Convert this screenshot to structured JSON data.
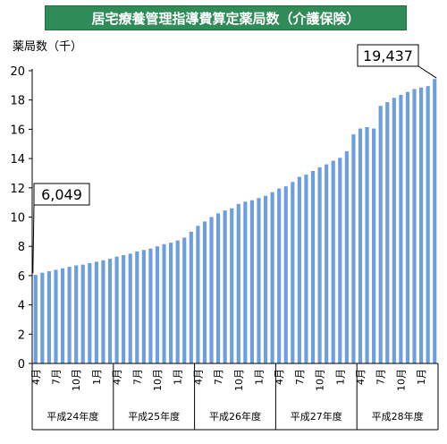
{
  "chart_data": {
    "type": "bar",
    "title": "居宅療養管理指導費算定薬局数（介護保険）",
    "ylabel": "薬局数（千）",
    "ylim": [
      0,
      20
    ],
    "yticks": [
      0,
      2,
      4,
      6,
      8,
      10,
      12,
      14,
      16,
      18,
      20
    ],
    "grid": false,
    "bar_color": "#6d9fe0",
    "categories": [
      "H24-4",
      "H24-5",
      "H24-6",
      "H24-7",
      "H24-8",
      "H24-9",
      "H24-10",
      "H24-11",
      "H24-12",
      "H24-1",
      "H24-2",
      "H24-3",
      "H25-4",
      "H25-5",
      "H25-6",
      "H25-7",
      "H25-8",
      "H25-9",
      "H25-10",
      "H25-11",
      "H25-12",
      "H25-1",
      "H25-2",
      "H25-3",
      "H26-4",
      "H26-5",
      "H26-6",
      "H26-7",
      "H26-8",
      "H26-9",
      "H26-10",
      "H26-11",
      "H26-12",
      "H26-1",
      "H26-2",
      "H26-3",
      "H27-4",
      "H27-5",
      "H27-6",
      "H27-7",
      "H27-8",
      "H27-9",
      "H27-10",
      "H27-11",
      "H27-12",
      "H27-1",
      "H27-2",
      "H27-3",
      "H28-4",
      "H28-5",
      "H28-6",
      "H28-7",
      "H28-8",
      "H28-9",
      "H28-10",
      "H28-11",
      "H28-12",
      "H28-1",
      "H28-2",
      "H28-3"
    ],
    "values": [
      6.049,
      6.2,
      6.3,
      6.4,
      6.5,
      6.6,
      6.7,
      6.75,
      6.85,
      6.95,
      7.05,
      7.15,
      7.3,
      7.4,
      7.5,
      7.65,
      7.75,
      7.85,
      8.0,
      8.15,
      8.25,
      8.4,
      8.6,
      9.0,
      9.4,
      9.7,
      10.0,
      10.25,
      10.45,
      10.6,
      10.9,
      11.05,
      11.15,
      11.3,
      11.45,
      11.7,
      11.95,
      12.1,
      12.4,
      12.75,
      12.9,
      13.15,
      13.4,
      13.6,
      13.85,
      14.05,
      14.5,
      15.65,
      16.05,
      16.15,
      16.05,
      17.6,
      17.85,
      18.15,
      18.35,
      18.55,
      18.75,
      18.85,
      18.95,
      19.437
    ],
    "month_labels": [
      {
        "index": 0,
        "label": "4月"
      },
      {
        "index": 3,
        "label": "7月"
      },
      {
        "index": 6,
        "label": "10月"
      },
      {
        "index": 9,
        "label": "1月"
      },
      {
        "index": 12,
        "label": "4月"
      },
      {
        "index": 15,
        "label": "7月"
      },
      {
        "index": 18,
        "label": "10月"
      },
      {
        "index": 21,
        "label": "1月"
      },
      {
        "index": 24,
        "label": "4月"
      },
      {
        "index": 27,
        "label": "7月"
      },
      {
        "index": 30,
        "label": "10月"
      },
      {
        "index": 33,
        "label": "1月"
      },
      {
        "index": 36,
        "label": "4月"
      },
      {
        "index": 39,
        "label": "7月"
      },
      {
        "index": 42,
        "label": "10月"
      },
      {
        "index": 45,
        "label": "1月"
      },
      {
        "index": 48,
        "label": "4月"
      },
      {
        "index": 51,
        "label": "7月"
      },
      {
        "index": 54,
        "label": "10月"
      },
      {
        "index": 57,
        "label": "1月"
      }
    ],
    "fiscal_years": [
      {
        "label": "平成24年度",
        "start": 0,
        "end": 11
      },
      {
        "label": "平成25年度",
        "start": 12,
        "end": 23
      },
      {
        "label": "平成26年度",
        "start": 24,
        "end": 35
      },
      {
        "label": "平成27年度",
        "start": 36,
        "end": 47
      },
      {
        "label": "平成28年度",
        "start": 48,
        "end": 59
      }
    ],
    "annotations": [
      {
        "text": "6,049",
        "index": 0
      },
      {
        "text": "19,437",
        "index": 59
      }
    ]
  }
}
